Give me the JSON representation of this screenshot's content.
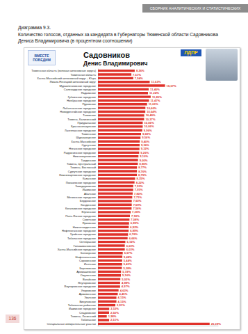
{
  "header": "СБОРНИК АНАЛИТИЧЕСКИХ И СТАТИСТИЧЕСКИХ МАТЕРИАЛОВ",
  "caption": {
    "number": "Диаграмма 9.3.",
    "text": "Количество голосов, отданных за кандидата в Губернаторы Тюменской области Садовникова Дениса Владимировича (в процентном соотношении)"
  },
  "logo": "ВМЕСТЕ ПОБЕДИМ",
  "party": "ЛДПР",
  "page_number": "136",
  "chart_data": {
    "type": "bar",
    "title": "Садовников",
    "subtitle": "Денис Владимирович",
    "orientation": "horizontal",
    "categories": [
      "Тюменская область (включая автономные округа)",
      "Тюменская область",
      "Ханты-Мансийский автономный округ – Югра",
      "Ямало-Ненецкий автономный округ",
      "Муравленковское городское",
      "Салехардское городское",
      "Надымское",
      "Губкинское городское",
      "Ноябрьское городское",
      "Пуровское",
      "Лабытнангское городское",
      "Новоуренгойское городское",
      "Тазовское",
      "Тюмень, Калининский",
      "Приуральское",
      "Красноселькупское",
      "Лангепасское городское",
      "Тюменское",
      "Шурышкарское",
      "Ханты-Мансийское",
      "Сургутское",
      "Няганское городское",
      "Радужнинское городское",
      "Нижневартовское",
      "Тавдинское",
      "Тюмень, Центральный",
      "Тюмень, Восточный",
      "Сургутское городское",
      "Нижневартовское городское",
      "Казанское",
      "Покачевское городское",
      "Заводоуковское",
      "Ишимское",
      "Абатское",
      "Мегионское городское",
      "Бердюжское",
      "Кондинское",
      "Когалымское городское",
      "Юргинское",
      "Пыть-Яхское городское",
      "Советское",
      "Ярковское",
      "Нижнетавдинское",
      "Нефтеюганское городское",
      "Урайское городское",
      "Тобольское городское",
      "Октябрьское",
      "Голышмановское",
      "Ханты-Мансийское городское",
      "Белоярское",
      "Нефтеюганское",
      "Сорокинское",
      "Исетское",
      "Березовское",
      "Аромашевское",
      "Омутинское",
      "Вагайское",
      "Ялуторовское",
      "Ялуторовское городское",
      "Упоровское",
      "Армизонское",
      "Уватское",
      "Викуловское",
      "Тобольское районное",
      "Ишимское городское",
      "Сладковское",
      "Тюмень, Ленинский",
      "Тобольское",
      "Специальные избирательные участки"
    ],
    "values": [
      8.26,
      7.51,
      7.94,
      11.63,
      15.07,
      11.4,
      11.24,
      11.85,
      11.47,
      11.03,
      10.66,
      10.64,
      10.4,
      10.37,
      10.06,
      10.06,
      9.96,
      9.68,
      9.56,
      9.4,
      9.36,
      9.32,
      9.26,
      9.1,
      9.0,
      8.96,
      8.77,
      8.76,
      8.75,
      8.35,
      8.22,
      7.93,
      7.91,
      7.8,
      7.71,
      7.6,
      7.59,
      7.56,
      7.35,
      7.18,
      7.08,
      6.99,
      6.92,
      6.89,
      6.76,
      6.66,
      6.16,
      6.03,
      6.03,
      5.57,
      5.48,
      5.44,
      5.43,
      5.38,
      5.19,
      5.16,
      5.03,
      4.98,
      4.97,
      4.63,
      4.45,
      4.15,
      4.15,
      3.91,
      2.53,
      2.5,
      1.98,
      2.51,
      25.09
    ],
    "value_labels": [
      "8,26%",
      "7,51%",
      "7,94%",
      "11,63%",
      "15,07%",
      "11,40%",
      "11,24%",
      "11,85%",
      "11,47%",
      "11,03%",
      "10,66%",
      "10,64%",
      "10,40%",
      "10,37%",
      "10,06%",
      "10,06%",
      "9,96%",
      "9,68%",
      "9,56%",
      "9,40%",
      "9,36%",
      "9,32%",
      "9,26%",
      "9,10%",
      "9,00%",
      "8,96%",
      "8,77%",
      "8,76%",
      "8,75%",
      "8,35%",
      "8,22%",
      "7,93%",
      "7,91%",
      "7,80%",
      "7,71%",
      "7,60%",
      "7,59%",
      "7,56%",
      "7,35%",
      "7,18%",
      "7,08%",
      "6,99%",
      "6,92%",
      "6,89%",
      "6,76%",
      "6,66%",
      "6,16%",
      "6,03%",
      "6,03%",
      "5,57%",
      "5,48%",
      "5,44%",
      "5,43%",
      "5,38%",
      "5,19%",
      "5,16%",
      "5,03%",
      "4,98%",
      "4,97%",
      "4,63%",
      "4,45%",
      "4,15%",
      "4,15%",
      "3,91%",
      "2,53%",
      "2,50%",
      "1,98%",
      "2,51%",
      "25,09%"
    ],
    "color": "#e0312a",
    "xlim": [
      0,
      27
    ],
    "data_labels": true,
    "tick_labels": "y",
    "grid": false
  }
}
